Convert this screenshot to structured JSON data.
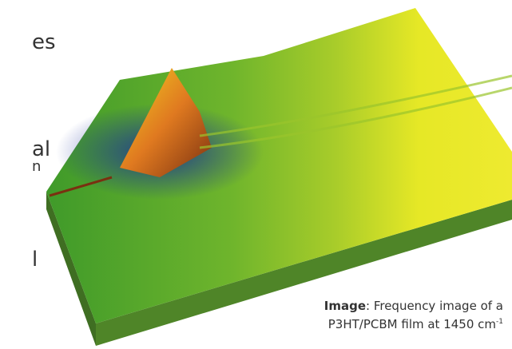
{
  "fragments": [
    "es",
    "al",
    "n",
    "l"
  ],
  "caption": {
    "label": "Image",
    "line1": ": Frequency image of a",
    "line2": "P3HT/PCBM film at 1450 cm",
    "superscript": "-1"
  }
}
